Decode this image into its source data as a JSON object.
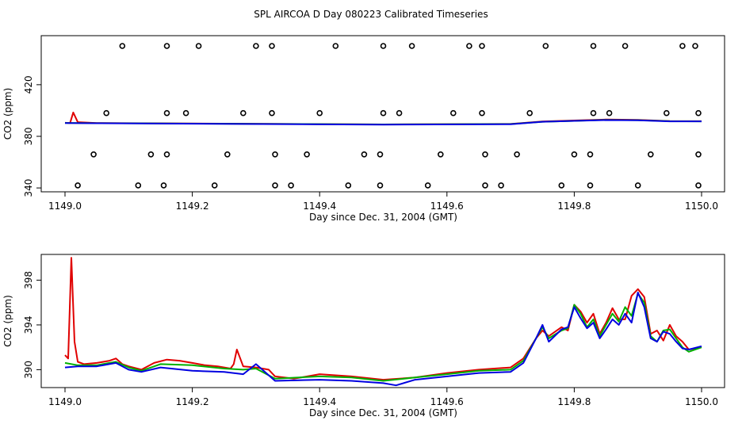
{
  "title": "SPL AIRCOA D  Day 080223  Calibrated Timeseries",
  "colors": {
    "red": "#e00000",
    "green": "#00b000",
    "blue": "#0000e0",
    "markers": "#000000"
  },
  "chart_data": [
    {
      "type": "line+scatter",
      "xlabel": "Day since Dec. 31, 2004 (GMT)",
      "ylabel": "CO2 (ppm)",
      "xlim": [
        1149.0,
        1150.0
      ],
      "ylim": [
        337,
        458
      ],
      "xticks": [
        1149.0,
        1149.2,
        1149.4,
        1149.6,
        1149.8,
        1150.0
      ],
      "xtick_labels": [
        "1149.0",
        "1149.2",
        "1149.4",
        "1149.6",
        "1149.8",
        "1150.0"
      ],
      "yticks": [
        340,
        380,
        420
      ],
      "ytick_labels": [
        "340",
        "380",
        "420"
      ],
      "markers": [
        {
          "level": 450,
          "x": [
            1149.09,
            1149.16,
            1149.21,
            1149.3,
            1149.325,
            1149.425,
            1149.5,
            1149.545,
            1149.635,
            1149.655,
            1149.755,
            1149.83,
            1149.88,
            1149.97,
            1149.99
          ]
        },
        {
          "level": 398,
          "x": [
            1149.065,
            1149.16,
            1149.19,
            1149.28,
            1149.325,
            1149.4,
            1149.5,
            1149.525,
            1149.61,
            1149.655,
            1149.73,
            1149.83,
            1149.855,
            1149.945,
            1149.995
          ]
        },
        {
          "level": 366,
          "x": [
            1149.045,
            1149.135,
            1149.16,
            1149.255,
            1149.33,
            1149.38,
            1149.47,
            1149.495,
            1149.59,
            1149.66,
            1149.71,
            1149.8,
            1149.825,
            1149.92,
            1149.995
          ]
        },
        {
          "level": 342,
          "x": [
            1149.02,
            1149.115,
            1149.155,
            1149.235,
            1149.33,
            1149.355,
            1149.445,
            1149.495,
            1149.57,
            1149.66,
            1149.685,
            1149.78,
            1149.825,
            1149.9,
            1149.995
          ]
        }
      ],
      "series": [
        {
          "color": "red",
          "x": [
            1149.0,
            1149.008,
            1149.013,
            1149.02,
            1149.05,
            1149.5,
            1149.7,
            1149.75,
            1149.8,
            1149.85,
            1149.9,
            1149.95,
            1150.0
          ],
          "y": [
            390.5,
            390.3,
            398.5,
            391.0,
            390.3,
            389.2,
            389.6,
            391.5,
            392.3,
            393.0,
            392.8,
            391.8,
            391.7
          ]
        },
        {
          "color": "green",
          "x": [
            1149.0,
            1149.05,
            1149.5,
            1149.7,
            1149.75,
            1149.8,
            1149.85,
            1149.9,
            1149.95,
            1150.0
          ],
          "y": [
            390.4,
            390.2,
            389.2,
            389.5,
            391.3,
            392.0,
            392.8,
            392.5,
            391.7,
            391.6
          ]
        },
        {
          "color": "blue",
          "x": [
            1149.0,
            1149.05,
            1149.5,
            1149.7,
            1149.75,
            1149.8,
            1149.85,
            1149.9,
            1149.95,
            1150.0
          ],
          "y": [
            390.3,
            390.1,
            389.1,
            389.4,
            391.3,
            392.0,
            392.6,
            392.4,
            391.6,
            391.6
          ]
        }
      ]
    },
    {
      "type": "line",
      "xlabel": "Day since Dec. 31, 2004 (GMT)",
      "ylabel": "CO2 (ppm)",
      "xlim": [
        1149.0,
        1150.0
      ],
      "ylim": [
        388.4,
        400.3
      ],
      "xticks": [
        1149.0,
        1149.2,
        1149.4,
        1149.6,
        1149.8,
        1150.0
      ],
      "xtick_labels": [
        "1149.0",
        "1149.2",
        "1149.4",
        "1149.6",
        "1149.8",
        "1150.0"
      ],
      "yticks": [
        390,
        394,
        398
      ],
      "ytick_labels": [
        "390",
        "394",
        "398"
      ],
      "series": [
        {
          "color": "red",
          "x": [
            1149.0,
            1149.005,
            1149.01,
            1149.015,
            1149.02,
            1149.03,
            1149.05,
            1149.07,
            1149.08,
            1149.09,
            1149.1,
            1149.12,
            1149.14,
            1149.16,
            1149.18,
            1149.2,
            1149.22,
            1149.24,
            1149.26,
            1149.265,
            1149.27,
            1149.28,
            1149.3,
            1149.32,
            1149.33,
            1149.36,
            1149.4,
            1149.45,
            1149.5,
            1149.55,
            1149.6,
            1149.65,
            1149.7,
            1149.72,
            1149.74,
            1149.75,
            1149.76,
            1149.78,
            1149.79,
            1149.8,
            1149.81,
            1149.82,
            1149.83,
            1149.84,
            1149.85,
            1149.86,
            1149.87,
            1149.88,
            1149.89,
            1149.9,
            1149.91,
            1149.92,
            1149.93,
            1149.94,
            1149.95,
            1149.96,
            1149.97,
            1149.98,
            1150.0
          ],
          "y": [
            391.3,
            391.0,
            400.0,
            392.5,
            390.7,
            390.5,
            390.6,
            390.8,
            391.0,
            390.5,
            390.3,
            390.0,
            390.6,
            390.9,
            390.8,
            390.6,
            390.4,
            390.3,
            390.1,
            390.5,
            391.8,
            390.3,
            390.2,
            390.0,
            389.4,
            389.2,
            389.6,
            389.4,
            389.1,
            389.3,
            389.7,
            390.0,
            390.2,
            391.0,
            392.8,
            393.5,
            393.0,
            393.8,
            393.5,
            395.8,
            395.2,
            394.2,
            395.0,
            393.2,
            394.2,
            395.5,
            394.5,
            394.5,
            396.6,
            397.2,
            396.5,
            393.2,
            393.5,
            392.6,
            394.0,
            393.0,
            392.5,
            391.8,
            392.0
          ]
        },
        {
          "color": "green",
          "x": [
            1149.0,
            1149.02,
            1149.05,
            1149.08,
            1149.1,
            1149.12,
            1149.15,
            1149.2,
            1149.25,
            1149.28,
            1149.3,
            1149.33,
            1149.4,
            1149.45,
            1149.5,
            1149.55,
            1149.6,
            1149.65,
            1149.7,
            1149.72,
            1149.74,
            1149.75,
            1149.76,
            1149.78,
            1149.79,
            1149.8,
            1149.81,
            1149.82,
            1149.83,
            1149.84,
            1149.85,
            1149.86,
            1149.87,
            1149.88,
            1149.89,
            1149.9,
            1149.91,
            1149.92,
            1149.93,
            1149.94,
            1149.95,
            1149.96,
            1149.97,
            1149.98,
            1150.0
          ],
          "y": [
            390.6,
            390.4,
            390.4,
            390.7,
            390.2,
            389.9,
            390.5,
            390.4,
            390.1,
            390.0,
            390.1,
            389.2,
            389.4,
            389.3,
            389.0,
            389.3,
            389.6,
            389.9,
            390.0,
            390.8,
            392.8,
            393.8,
            392.8,
            393.5,
            393.7,
            395.8,
            395.0,
            393.8,
            394.5,
            393.0,
            394.0,
            395.0,
            394.3,
            395.6,
            394.8,
            396.8,
            396.0,
            393.0,
            392.5,
            393.5,
            393.6,
            392.8,
            392.0,
            391.6,
            392.0
          ]
        },
        {
          "color": "blue",
          "x": [
            1149.0,
            1149.02,
            1149.05,
            1149.08,
            1149.1,
            1149.12,
            1149.15,
            1149.2,
            1149.25,
            1149.28,
            1149.3,
            1149.33,
            1149.4,
            1149.45,
            1149.5,
            1149.52,
            1149.55,
            1149.6,
            1149.65,
            1149.7,
            1149.72,
            1149.74,
            1149.75,
            1149.76,
            1149.78,
            1149.79,
            1149.8,
            1149.81,
            1149.82,
            1149.83,
            1149.84,
            1149.85,
            1149.86,
            1149.87,
            1149.88,
            1149.89,
            1149.9,
            1149.91,
            1149.92,
            1149.93,
            1149.94,
            1149.95,
            1149.96,
            1149.97,
            1149.98,
            1150.0
          ],
          "y": [
            390.2,
            390.3,
            390.3,
            390.6,
            390.0,
            389.8,
            390.2,
            389.9,
            389.8,
            389.6,
            390.5,
            389.0,
            389.1,
            389.0,
            388.8,
            388.6,
            389.1,
            389.4,
            389.7,
            389.8,
            390.6,
            392.8,
            394.0,
            392.5,
            393.6,
            393.8,
            395.6,
            394.6,
            393.7,
            394.2,
            392.8,
            393.6,
            394.5,
            394.0,
            395.0,
            394.2,
            396.9,
            395.6,
            392.8,
            392.5,
            393.4,
            393.2,
            392.5,
            391.9,
            391.8,
            392.1
          ]
        }
      ]
    }
  ]
}
